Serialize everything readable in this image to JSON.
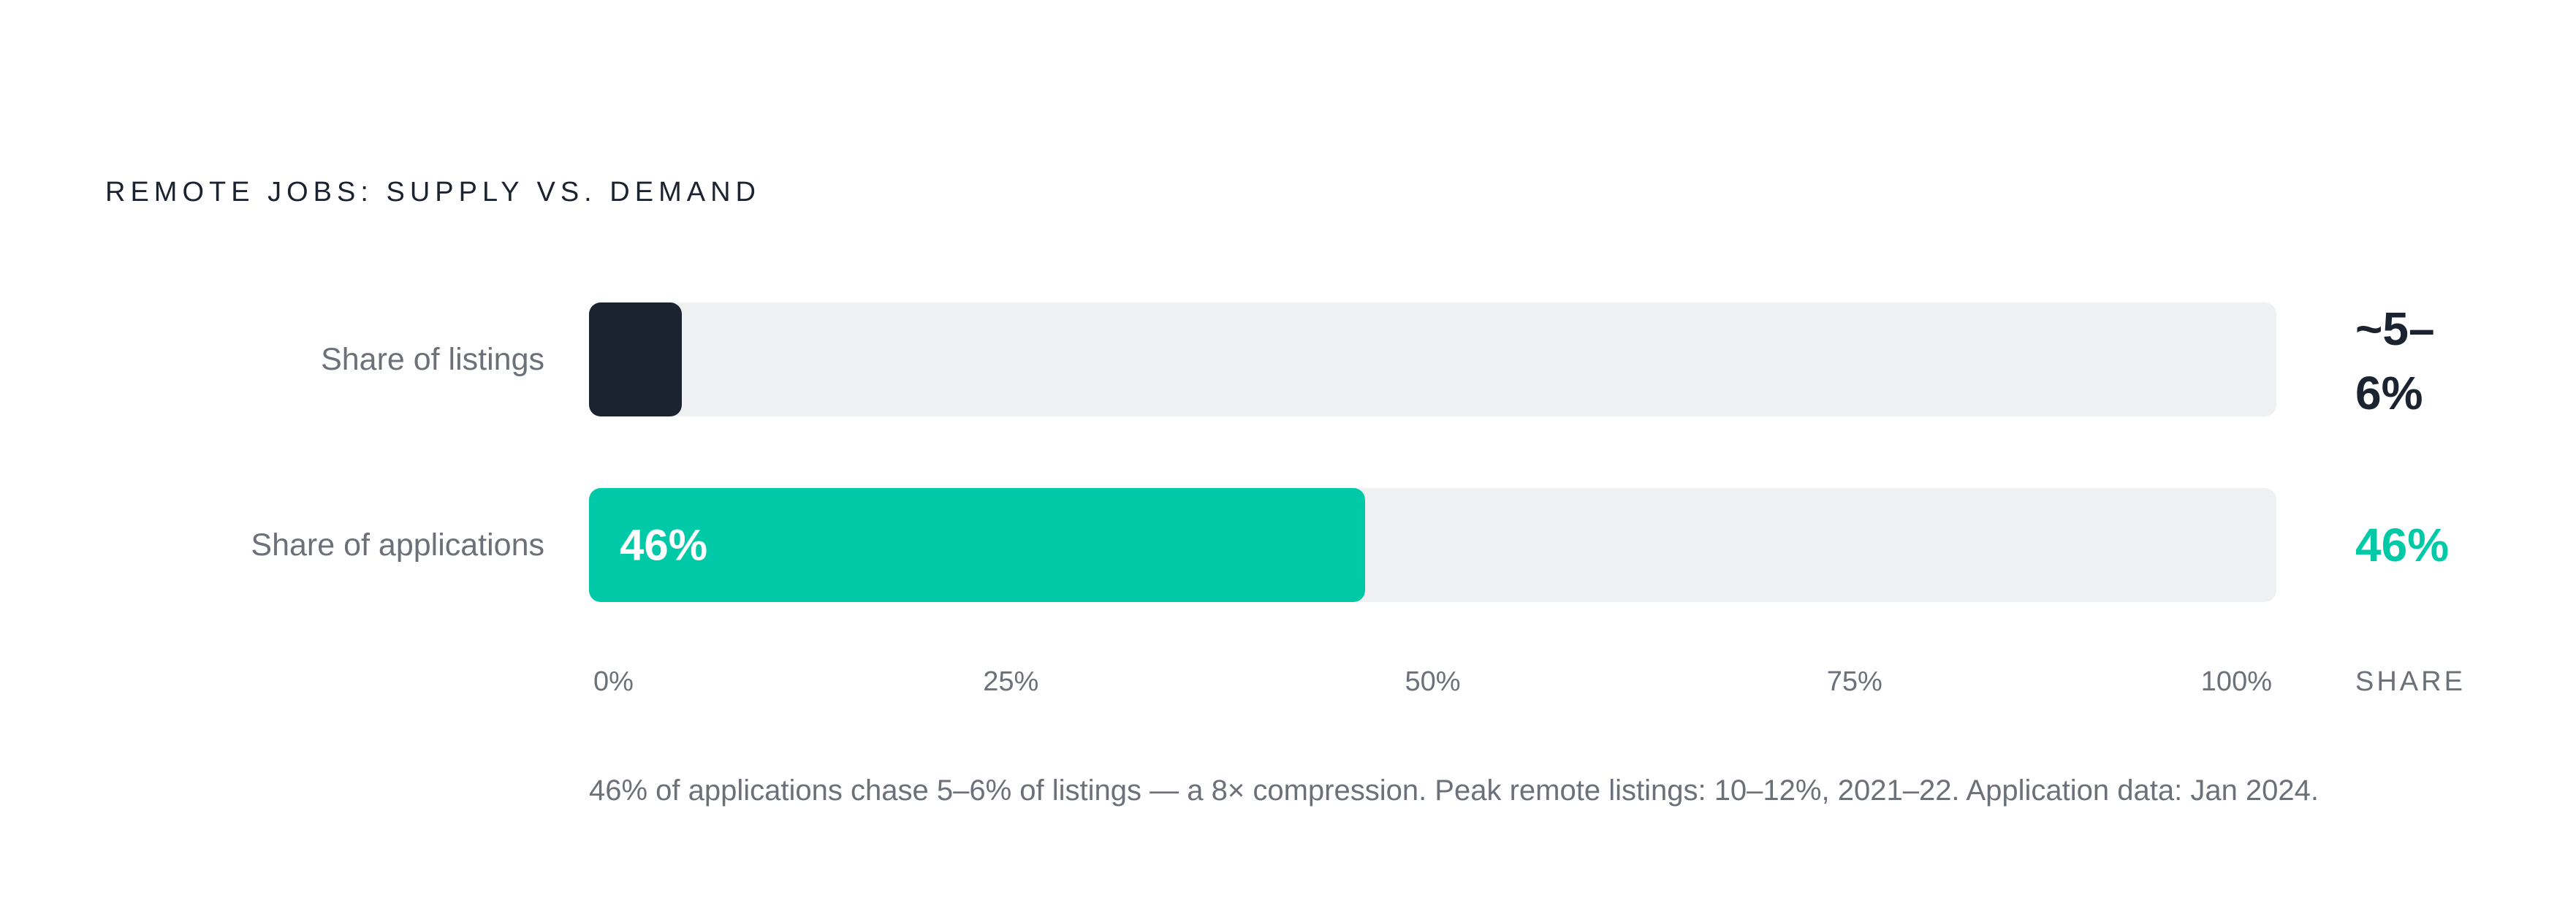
{
  "chart_data": {
    "type": "bar",
    "orientation": "horizontal",
    "title": "REMOTE JOBS: SUPPLY VS. DEMAND",
    "categories": [
      "Share of listings",
      "Share of applications"
    ],
    "values": [
      5.5,
      46
    ],
    "value_labels": [
      "~5–6%",
      "46%"
    ],
    "inner_labels": [
      "",
      "46%"
    ],
    "xlim": [
      0,
      100
    ],
    "x_ticks": [
      "0%",
      "25%",
      "50%",
      "75%",
      "100%"
    ],
    "value_column_header": "SHARE",
    "colors": [
      "#1c2330",
      "#00c9a7"
    ],
    "track_color": "#eff0f1",
    "annotation": "46% of applications chase 5–6% of listings — a 8× compression. Peak remote listings: 10–12%, 2021–22. Application data: Jan 2024."
  }
}
